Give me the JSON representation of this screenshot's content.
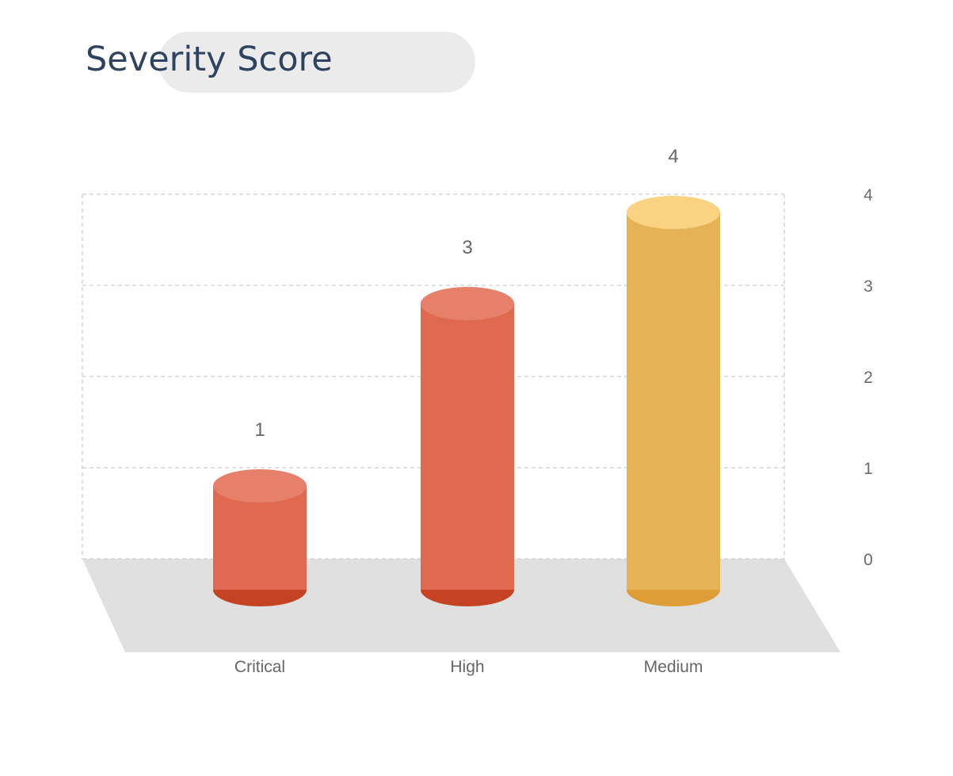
{
  "chart_data": {
    "type": "bar",
    "title": "Severity Score",
    "categories": [
      "Critical",
      "High",
      "Medium"
    ],
    "values": [
      1,
      3,
      4
    ],
    "ylim": [
      0,
      4
    ],
    "yticks": [
      0,
      1,
      2,
      3,
      4
    ],
    "xlabel": "",
    "ylabel": "",
    "grid": true,
    "y_axis_side": "right",
    "style": "3d-cylinder",
    "bar_colors": [
      {
        "side": "#e06a50",
        "top": "#e6806a",
        "bottom": "#c54323"
      },
      {
        "side": "#e06a50",
        "top": "#e6806a",
        "bottom": "#c54323"
      },
      {
        "side": "#e6b256",
        "top": "#f9d282",
        "bottom": "#dd9d37"
      }
    ],
    "floor_color": "#e0e0e0",
    "grid_color": "#cccccc"
  }
}
